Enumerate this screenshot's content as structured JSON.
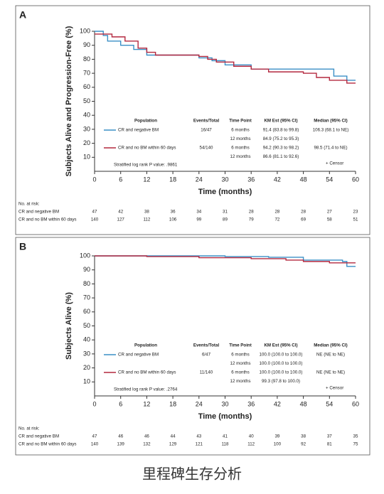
{
  "chart_data": [
    {
      "type": "line",
      "panel": "A",
      "y_label": "Subjects Alive and Progression-Free (%)",
      "x_label": "Time (months)",
      "xlim": [
        0,
        60
      ],
      "xticks": [
        0,
        6,
        12,
        18,
        24,
        30,
        36,
        42,
        48,
        54,
        60
      ],
      "ylim": [
        0,
        100
      ],
      "yticks": [
        10,
        20,
        30,
        40,
        50,
        60,
        70,
        80,
        90,
        100
      ],
      "series": [
        {
          "name": "CR and negative BM",
          "color": "#3a8fc6",
          "x": [
            0,
            2,
            2,
            3,
            3,
            6,
            6,
            9,
            9,
            12,
            12,
            24,
            24,
            27,
            27,
            30,
            30,
            36,
            36,
            55,
            55,
            58,
            58,
            60
          ],
          "values": [
            100,
            100,
            97,
            97,
            93,
            93,
            90,
            90,
            87,
            87,
            83,
            83,
            81,
            81,
            79,
            79,
            76,
            76,
            73,
            73,
            68,
            68,
            65,
            65
          ]
        },
        {
          "name": "CR and no BM within 60 days",
          "color": "#b3283f",
          "x": [
            0,
            4,
            4,
            7,
            7,
            10,
            10,
            12,
            12,
            14,
            14,
            24,
            24,
            26,
            26,
            28,
            28,
            32,
            32,
            36,
            36,
            40,
            40,
            48,
            48,
            51,
            51,
            54,
            54,
            58,
            58,
            60
          ],
          "values": [
            98,
            98,
            96,
            96,
            93,
            93,
            88,
            88,
            85,
            85,
            83,
            83,
            82,
            82,
            80,
            80,
            78,
            78,
            75,
            75,
            73,
            73,
            71,
            71,
            70,
            70,
            67,
            67,
            65,
            65,
            63,
            63
          ]
        }
      ],
      "table": {
        "headers": [
          "Population",
          "Events/Total",
          "Time Point",
          "KM Est (95% CI)",
          "Median (95% CI)"
        ],
        "rows": [
          {
            "population": "CR and negative BM",
            "events": "16/47",
            "median": "106.3 (68.1 to NE)",
            "timepoints": [
              {
                "time": "6 months",
                "km": "91.4 (83.8 to 99.8)"
              },
              {
                "time": "12 months",
                "km": "84.9 (75.2 to 95.3)"
              }
            ]
          },
          {
            "population": "CR and no BM within 60 days",
            "events": "54/140",
            "median": "98.5 (71.4 to NE)",
            "timepoints": [
              {
                "time": "6 months",
                "km": "94.2 (90.3 to 98.2)"
              },
              {
                "time": "12 months",
                "km": "86.6 (81.1 to 92.6)"
              }
            ]
          }
        ]
      },
      "note": "Stratified log rank P value: .9861",
      "censor_label": "+ Censor",
      "risk_table": {
        "title": "No. at risk:",
        "rows": [
          {
            "name": "CR and negative BM",
            "color": "#3a8fc6",
            "values": [
              47,
              42,
              38,
              36,
              34,
              31,
              28,
              28,
              28,
              27,
              23
            ]
          },
          {
            "name": "CR and no BM within 60 days",
            "color": "#b3283f",
            "values": [
              140,
              127,
              112,
              106,
              99,
              89,
              79,
              72,
              69,
              58,
              51
            ]
          }
        ]
      }
    },
    {
      "type": "line",
      "panel": "B",
      "y_label": "Subjects Alive (%)",
      "x_label": "Time (months)",
      "xlim": [
        0,
        60
      ],
      "xticks": [
        0,
        6,
        12,
        18,
        24,
        30,
        36,
        42,
        48,
        54,
        60
      ],
      "ylim": [
        0,
        100
      ],
      "yticks": [
        10,
        20,
        30,
        40,
        50,
        60,
        70,
        80,
        90,
        100
      ],
      "series": [
        {
          "name": "CR and negative BM",
          "color": "#3a8fc6",
          "x": [
            0,
            30,
            30,
            40,
            40,
            48,
            48,
            57,
            57,
            58,
            58,
            60
          ],
          "values": [
            100,
            100,
            99.5,
            99.5,
            99,
            99,
            97,
            97,
            96,
            96,
            92.5,
            92.5
          ]
        },
        {
          "name": "CR and no BM within 60 days",
          "color": "#b3283f",
          "x": [
            0,
            12,
            12,
            24,
            24,
            36,
            36,
            44,
            44,
            48,
            48,
            54,
            54,
            60
          ],
          "values": [
            100,
            100,
            99.5,
            99.5,
            98.7,
            98.7,
            98,
            98,
            97,
            97,
            96,
            96,
            95,
            95
          ]
        }
      ],
      "table": {
        "headers": [
          "Population",
          "Events/Total",
          "Time Point",
          "KM Est (95% CI)",
          "Median (95% CI)"
        ],
        "rows": [
          {
            "population": "CR and negative BM",
            "events": "6/47",
            "median": "NE (NE to NE)",
            "timepoints": [
              {
                "time": "6 months",
                "km": "100.0 (100.0 to 100.0)"
              },
              {
                "time": "12 months",
                "km": "100.0 (100.0 to 100.0)"
              }
            ]
          },
          {
            "population": "CR and no BM within 60 days",
            "events": "11/140",
            "median": "NE (NE to NE)",
            "timepoints": [
              {
                "time": "6 months",
                "km": "100.0 (100.0 to 100.0)"
              },
              {
                "time": "12 months",
                "km": "99.3 (97.8 to 100.0)"
              }
            ]
          }
        ]
      },
      "note": "Stratified log rank P value: .2764",
      "censor_label": "+ Censor",
      "risk_table": {
        "title": "No. at risk:",
        "rows": [
          {
            "name": "CR and negative BM",
            "color": "#3a8fc6",
            "values": [
              47,
              46,
              46,
              44,
              43,
              41,
              40,
              39,
              38,
              37,
              35
            ]
          },
          {
            "name": "CR and no BM within 60 days",
            "color": "#b3283f",
            "values": [
              140,
              139,
              132,
              129,
              121,
              118,
              112,
              100,
              92,
              81,
              75
            ]
          }
        ]
      }
    }
  ],
  "caption": "里程碑生存分析"
}
